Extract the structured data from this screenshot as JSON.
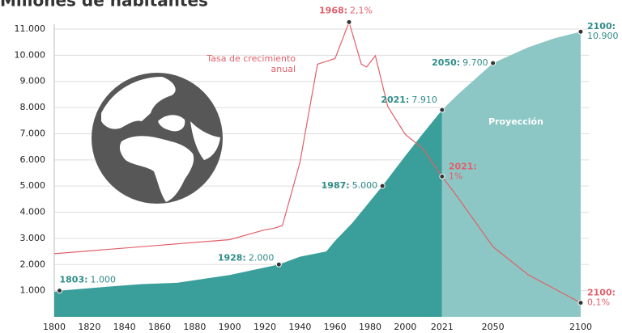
{
  "chart_data": {
    "type": "area",
    "title": "Millones de habitantes",
    "xlim": [
      1800,
      2100
    ],
    "xticks": [
      1800,
      1820,
      1840,
      1860,
      1880,
      1900,
      1920,
      1940,
      1960,
      1980,
      2000,
      2021,
      2050,
      2100
    ],
    "ylim": [
      0,
      11000
    ],
    "yticks": [
      {
        "value": 1000,
        "label": "1.000"
      },
      {
        "value": 2000,
        "label": "2.000"
      },
      {
        "value": 3000,
        "label": "3.000"
      },
      {
        "value": 4000,
        "label": "4.000"
      },
      {
        "value": 5000,
        "label": "5.000"
      },
      {
        "value": 6000,
        "label": "6.000"
      },
      {
        "value": 7000,
        "label": "7.000"
      },
      {
        "value": 8000,
        "label": "8.000"
      },
      {
        "value": 9000,
        "label": "9.000"
      },
      {
        "value": 10000,
        "label": "10.000"
      },
      {
        "value": 11000,
        "label": "11.000"
      }
    ],
    "y2lim": [
      0,
      2.05
    ],
    "grid": true,
    "series": [
      {
        "color": "#3a9e9a",
        "x": [
          1800,
          1803,
          1830,
          1850,
          1870,
          1900,
          1928,
          1940,
          1955,
          1960,
          1970,
          1987,
          2000,
          2010,
          2021
        ],
        "values": [
          950,
          1000,
          1150,
          1250,
          1300,
          1600,
          2000,
          2300,
          2500,
          2900,
          3600,
          5000,
          6150,
          7000,
          7910
        ]
      },
      {
        "name": "Proyección",
        "color": "#8cc7c5",
        "x": [
          2021,
          2030,
          2040,
          2050,
          2070,
          2085,
          2100
        ],
        "values": [
          7910,
          8500,
          9100,
          9700,
          10300,
          10650,
          10900
        ]
      },
      {
        "name": "Tasa de crecimiento anual",
        "color": "#e0606a",
        "type": "line",
        "axis": "y2",
        "x": [
          1800,
          1850,
          1900,
          1920,
          1925,
          1930,
          1940,
          1950,
          1955,
          1960,
          1968,
          1975,
          1978,
          1983,
          1990,
          2000,
          2010,
          2021,
          2030,
          2050,
          2070,
          2100
        ],
        "values": [
          0.45,
          0.5,
          0.55,
          0.62,
          0.63,
          0.65,
          1.1,
          1.8,
          1.82,
          1.84,
          2.1,
          1.8,
          1.78,
          1.86,
          1.5,
          1.3,
          1.2,
          1.0,
          0.85,
          0.5,
          0.3,
          0.1
        ]
      }
    ],
    "annotations": [
      {
        "series": 0,
        "x": 1803,
        "value": 1000,
        "label": "1803:",
        "value_label": "1.000"
      },
      {
        "series": 0,
        "x": 1928,
        "value": 2000,
        "label": "1928:",
        "value_label": "2.000"
      },
      {
        "series": 0,
        "x": 1987,
        "value": 5000,
        "label": "1987:",
        "value_label": "5.000"
      },
      {
        "series": 0,
        "x": 2021,
        "value": 7910,
        "label": "2021:",
        "value_label": "7.910"
      },
      {
        "series": 1,
        "x": 2050,
        "value": 9700,
        "label": "2050:",
        "value_label": "9.700"
      },
      {
        "series": 1,
        "x": 2100,
        "value": 10900,
        "label": "2100:",
        "value_label": "10.900"
      },
      {
        "series": 2,
        "x": 1968,
        "value": 2.1,
        "label": "1968:",
        "value_label": "2,1%"
      },
      {
        "series": 2,
        "x": 2021,
        "value": 1.0,
        "label": "2021:",
        "value_label": "1%"
      },
      {
        "series": 2,
        "x": 2100,
        "value": 0.1,
        "label": "2100:",
        "value_label": "0,1%"
      }
    ]
  }
}
